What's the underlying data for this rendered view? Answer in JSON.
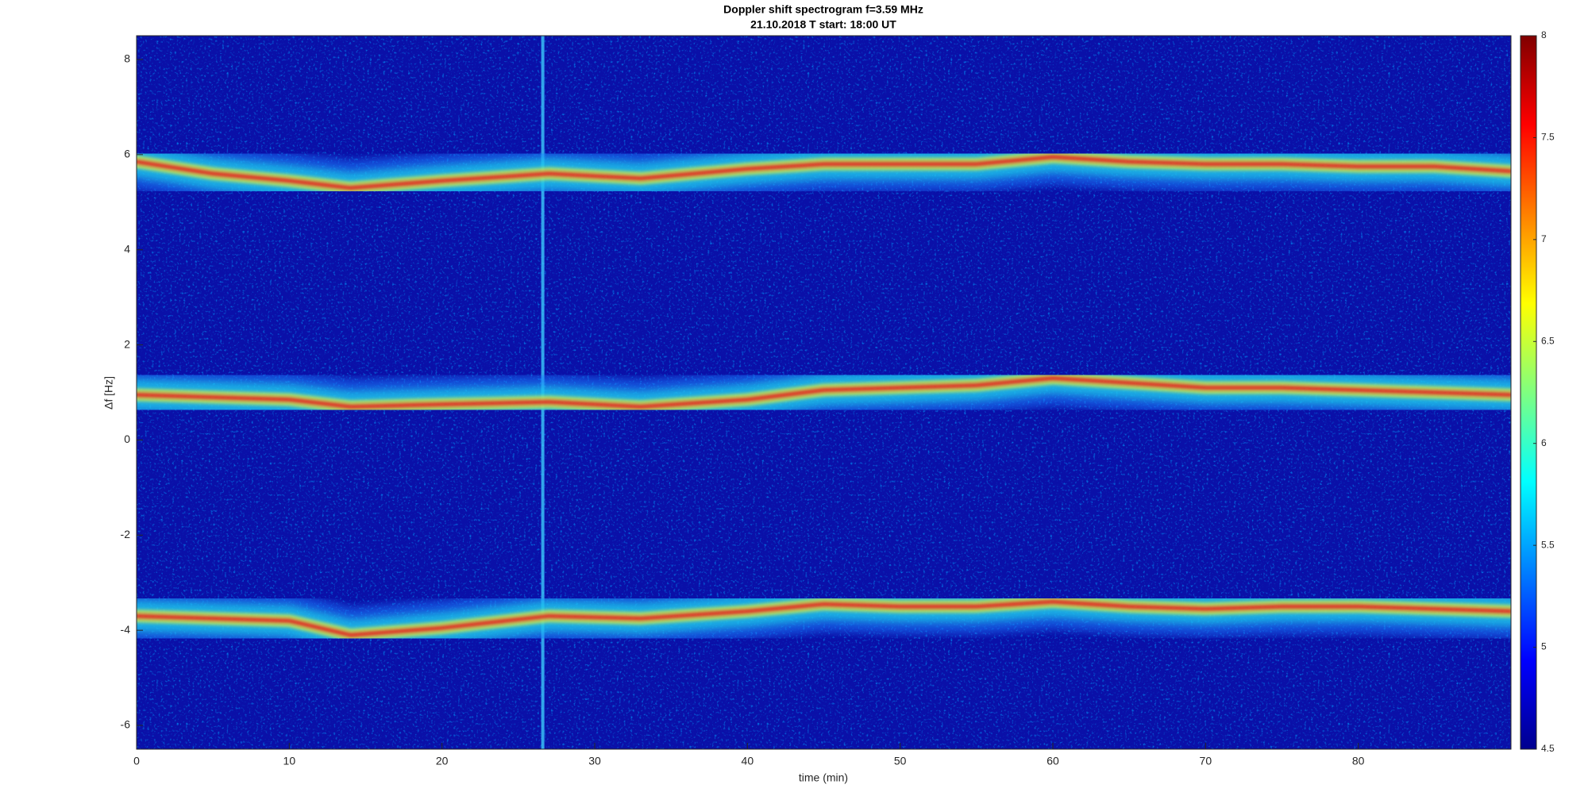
{
  "chart_data": {
    "type": "spectrogram",
    "title": "Doppler shift spectrogram f=3.59 MHz",
    "subtitle": "21.10.2018   T start: 18:00 UT",
    "x_label": "time (min)",
    "y_label": "Δf [Hz]",
    "xlim": [
      0,
      90
    ],
    "xticks": [
      0,
      10,
      20,
      30,
      40,
      50,
      60,
      70,
      80
    ],
    "ylim": [
      -6.5,
      8.5
    ],
    "yticks": [
      -6,
      -4,
      -2,
      0,
      2,
      4,
      6,
      8
    ],
    "colormap": "jet",
    "clim": [
      4.5,
      8
    ],
    "cticks": [
      4.5,
      5,
      5.5,
      6,
      6.5,
      7,
      7.5,
      8
    ],
    "x": [
      0,
      5,
      10,
      14,
      20,
      27,
      33,
      40,
      45,
      50,
      55,
      60,
      65,
      70,
      75,
      80,
      85,
      90
    ],
    "traces": [
      {
        "values": [
          5.85,
          5.6,
          5.45,
          5.3,
          5.45,
          5.6,
          5.5,
          5.7,
          5.8,
          5.8,
          5.8,
          5.95,
          5.85,
          5.8,
          5.8,
          5.75,
          5.75,
          5.65
        ]
      },
      {
        "values": [
          0.95,
          0.9,
          0.85,
          0.7,
          0.75,
          0.8,
          0.7,
          0.85,
          1.05,
          1.1,
          1.15,
          1.3,
          1.2,
          1.1,
          1.1,
          1.05,
          1.0,
          0.95
        ]
      },
      {
        "values": [
          -3.7,
          -3.75,
          -3.8,
          -4.1,
          -3.95,
          -3.7,
          -3.75,
          -3.6,
          -3.45,
          -3.5,
          -3.5,
          -3.4,
          -3.5,
          -3.55,
          -3.5,
          -3.5,
          -3.55,
          -3.6
        ]
      }
    ],
    "vertical_lines": [
      26.6
    ]
  }
}
